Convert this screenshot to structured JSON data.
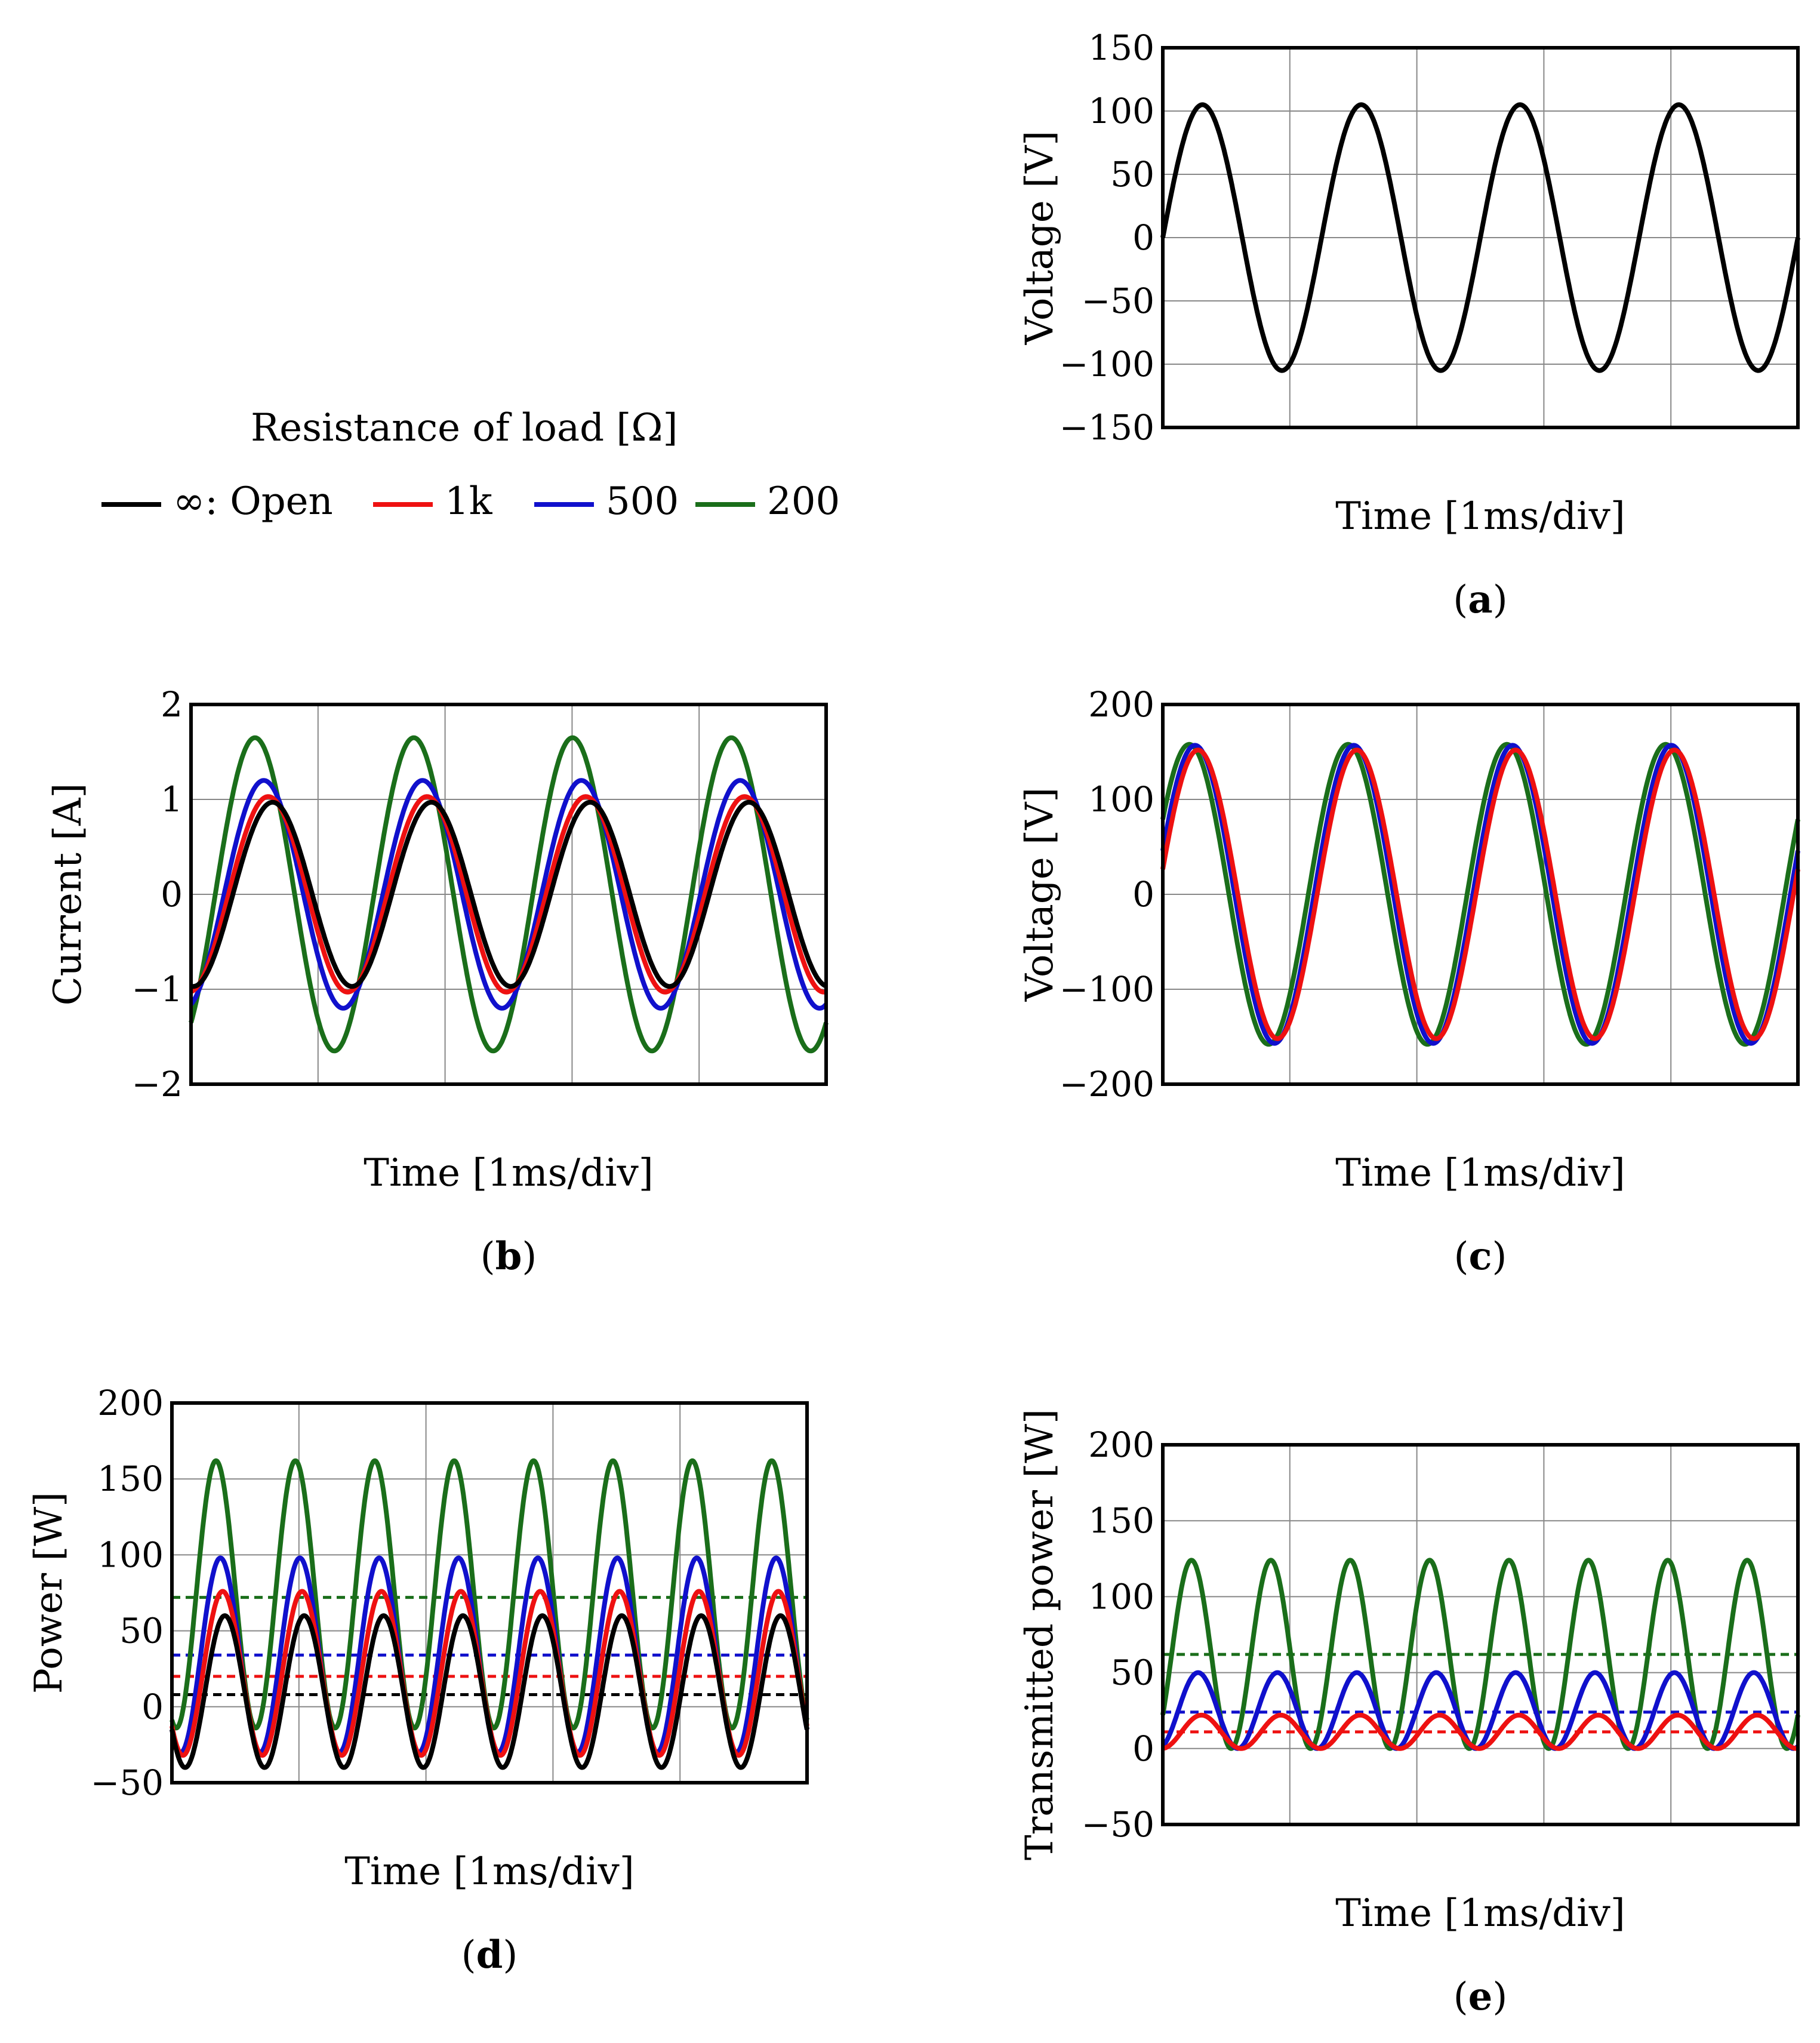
{
  "legend": {
    "title": "Resistance of load [Ω]",
    "entries": [
      {
        "label": "∞: Open",
        "color": "#000000"
      },
      {
        "label": "1k",
        "color": "#ee1111"
      },
      {
        "label": "500",
        "color": "#1010cc"
      },
      {
        "label": "200",
        "color": "#1a6e1a"
      }
    ]
  },
  "chart_data": [
    {
      "id": "a",
      "type": "line",
      "caption": "a",
      "xlabel": "Time [1ms/div]",
      "ylabel": "Voltage [V]",
      "ylim": [
        -150,
        150
      ],
      "yticks": [
        150,
        100,
        50,
        0,
        -50,
        -100,
        -150
      ],
      "x_divisions": 5,
      "grid": true,
      "series": [
        {
          "name": "∞: Open",
          "color": "#000000",
          "amplitude": 105,
          "offset": 0,
          "periods_per_div": 0.8,
          "phase_deg": 0
        }
      ]
    },
    {
      "id": "b",
      "type": "line",
      "caption": "b",
      "xlabel": "Time [1ms/div]",
      "ylabel": "Current [A]",
      "ylim": [
        -2,
        2
      ],
      "yticks": [
        2,
        1,
        0,
        -1,
        -2
      ],
      "x_divisions": 5,
      "grid": true,
      "series": [
        {
          "name": "200",
          "color": "#1a6e1a",
          "amplitude": 1.65,
          "offset": 0,
          "periods_per_div": 0.8,
          "phase_deg": -55
        },
        {
          "name": "500",
          "color": "#1010cc",
          "amplitude": 1.2,
          "offset": 0,
          "periods_per_div": 0.8,
          "phase_deg": -75
        },
        {
          "name": "1k",
          "color": "#ee1111",
          "amplitude": 1.03,
          "offset": 0,
          "periods_per_div": 0.8,
          "phase_deg": -85
        },
        {
          "name": "∞: Open",
          "color": "#000000",
          "amplitude": 0.97,
          "offset": 0,
          "periods_per_div": 0.8,
          "phase_deg": -95
        }
      ]
    },
    {
      "id": "c",
      "type": "line",
      "caption": "c",
      "xlabel": "Time [1ms/div]",
      "ylabel": "Voltage [V]",
      "ylim": [
        -200,
        200
      ],
      "yticks": [
        200,
        100,
        0,
        -100,
        -200
      ],
      "x_divisions": 5,
      "grid": true,
      "series": [
        {
          "name": "200",
          "color": "#1a6e1a",
          "amplitude": 158,
          "offset": 0,
          "periods_per_div": 0.8,
          "phase_deg": 30
        },
        {
          "name": "500",
          "color": "#1010cc",
          "amplitude": 157,
          "offset": 0,
          "periods_per_div": 0.8,
          "phase_deg": 17
        },
        {
          "name": "1k",
          "color": "#ee1111",
          "amplitude": 152,
          "offset": 0,
          "periods_per_div": 0.8,
          "phase_deg": 10
        }
      ]
    },
    {
      "id": "d",
      "type": "line",
      "caption": "d",
      "xlabel": "Time [1ms/div]",
      "ylabel": "Power [W]",
      "ylim": [
        -50,
        200
      ],
      "yticks": [
        200,
        150,
        100,
        50,
        0,
        -50
      ],
      "x_divisions": 5,
      "grid": true,
      "series": [
        {
          "name": "200",
          "color": "#1a6e1a",
          "amplitude": 88,
          "offset": 74,
          "periods_per_div": 1.6,
          "phase_deg": -110
        },
        {
          "name": "500",
          "color": "#1010cc",
          "amplitude": 64,
          "offset": 34,
          "periods_per_div": 1.6,
          "phase_deg": -130
        },
        {
          "name": "1k",
          "color": "#ee1111",
          "amplitude": 54,
          "offset": 22,
          "periods_per_div": 1.6,
          "phase_deg": -140
        },
        {
          "name": "∞: Open",
          "color": "#000000",
          "amplitude": 50,
          "offset": 10,
          "periods_per_div": 1.6,
          "phase_deg": -150
        }
      ],
      "averages": [
        {
          "name": "200",
          "color": "#1a6e1a",
          "value": 72
        },
        {
          "name": "500",
          "color": "#1010cc",
          "value": 34
        },
        {
          "name": "1k",
          "color": "#ee1111",
          "value": 20
        },
        {
          "name": "∞: Open",
          "color": "#000000",
          "value": 8
        }
      ]
    },
    {
      "id": "e",
      "type": "line",
      "caption": "e",
      "xlabel": "Time [1ms/div]",
      "ylabel": "Transmitted power [W]",
      "ylim": [
        -50,
        200
      ],
      "yticks": [
        200,
        150,
        100,
        50,
        0,
        -50
      ],
      "x_divisions": 5,
      "grid": true,
      "series": [
        {
          "name": "200",
          "color": "#1a6e1a",
          "amplitude": 62,
          "offset": 62,
          "periods_per_div": 1.6,
          "phase_deg": -40
        },
        {
          "name": "500",
          "color": "#1010cc",
          "amplitude": 25,
          "offset": 25,
          "periods_per_div": 1.6,
          "phase_deg": -70
        },
        {
          "name": "1k",
          "color": "#ee1111",
          "amplitude": 11,
          "offset": 11,
          "periods_per_div": 1.6,
          "phase_deg": -85
        }
      ],
      "averages": [
        {
          "name": "200",
          "color": "#1a6e1a",
          "value": 62
        },
        {
          "name": "500",
          "color": "#1010cc",
          "value": 24
        },
        {
          "name": "1k",
          "color": "#ee1111",
          "value": 11
        }
      ]
    }
  ]
}
